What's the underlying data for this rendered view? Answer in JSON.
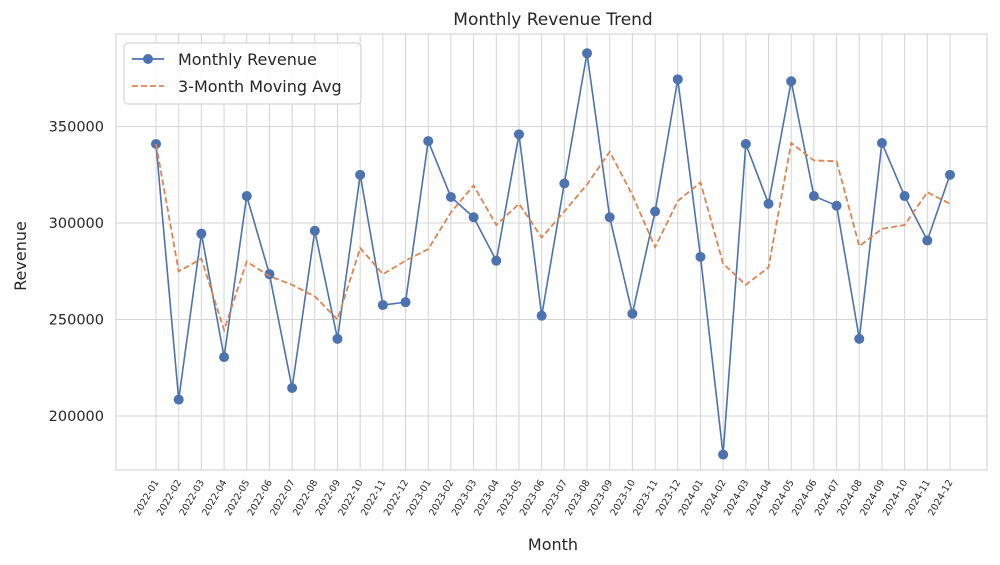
{
  "chart_data": {
    "type": "line",
    "title": "Monthly Revenue Trend",
    "xlabel": "Month",
    "ylabel": "Revenue",
    "ylim": [
      172000,
      398000
    ],
    "yticks": [
      200000,
      250000,
      300000,
      350000
    ],
    "grid": true,
    "legend_position": "top-left",
    "categories": [
      "2022-01",
      "2022-02",
      "2022-03",
      "2022-04",
      "2022-05",
      "2022-06",
      "2022-07",
      "2022-08",
      "2022-09",
      "2022-10",
      "2022-11",
      "2022-12",
      "2023-01",
      "2023-02",
      "2023-03",
      "2023-04",
      "2023-05",
      "2023-06",
      "2023-07",
      "2023-08",
      "2023-09",
      "2023-10",
      "2023-11",
      "2023-12",
      "2024-01",
      "2024-02",
      "2024-03",
      "2024-04",
      "2024-05",
      "2024-06",
      "2024-07",
      "2024-08",
      "2024-09",
      "2024-10",
      "2024-11",
      "2024-12"
    ],
    "series": [
      {
        "name": "Monthly Revenue",
        "style": "solid-markers",
        "color": "#4c72b0",
        "values": [
          341000,
          208500,
          294500,
          230500,
          314000,
          273500,
          214500,
          296000,
          240000,
          325000,
          257500,
          259000,
          342500,
          313500,
          303000,
          280500,
          346000,
          252000,
          320500,
          388000,
          303000,
          253000,
          306000,
          374500,
          282500,
          180000,
          341000,
          310000,
          373500,
          314000,
          309000,
          240000,
          341500,
          314000,
          291000,
          325000
        ]
      },
      {
        "name": "3-Month Moving Avg",
        "style": "dashed",
        "color": "#dd8452",
        "values": [
          341000,
          275000,
          281500,
          244500,
          280000,
          272500,
          268000,
          262000,
          250000,
          287000,
          273500,
          280500,
          286500,
          305500,
          319500,
          299000,
          310000,
          292500,
          306000,
          320000,
          337000,
          314500,
          287500,
          311500,
          321000,
          279000,
          268000,
          277000,
          341500,
          332500,
          332000,
          288000,
          297000,
          299000,
          316000,
          310000
        ]
      }
    ]
  }
}
